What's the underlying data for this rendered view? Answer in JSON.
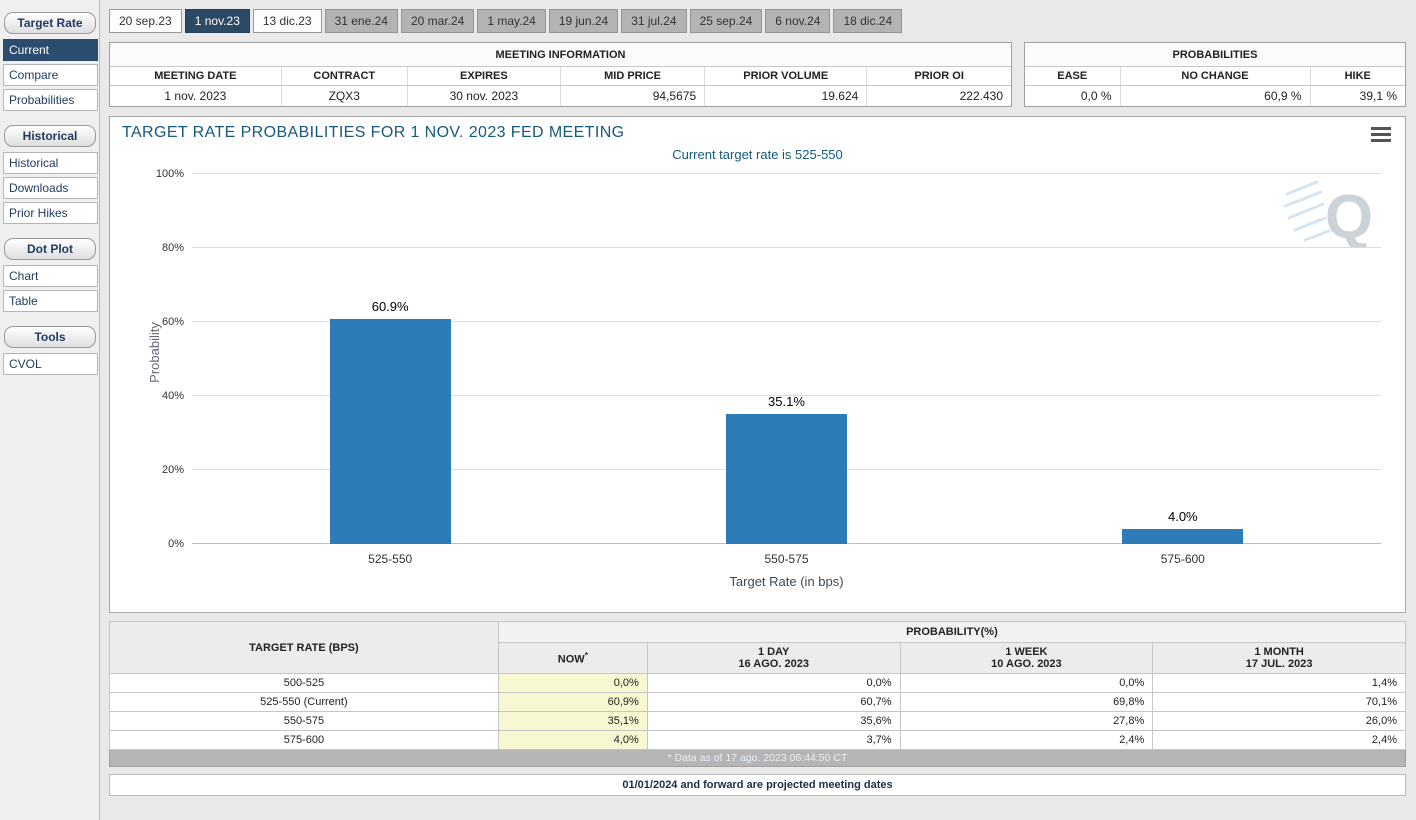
{
  "colors": {
    "bar": "#2e7cb7",
    "selected_navy": "#2b4c6f",
    "now_column_yellow": "#f7f7d2",
    "title_teal": "#15597e"
  },
  "sidebar": {
    "sections": [
      {
        "header": "Target Rate",
        "items": [
          {
            "label": "Current",
            "selected": true
          },
          {
            "label": "Compare",
            "selected": false
          },
          {
            "label": "Probabilities",
            "selected": false
          }
        ]
      },
      {
        "header": "Historical",
        "items": [
          {
            "label": "Historical",
            "selected": false
          },
          {
            "label": "Downloads",
            "selected": false
          },
          {
            "label": "Prior Hikes",
            "selected": false
          }
        ]
      },
      {
        "header": "Dot Plot",
        "items": [
          {
            "label": "Chart",
            "selected": false
          },
          {
            "label": "Table",
            "selected": false
          }
        ]
      },
      {
        "header": "Tools",
        "items": [
          {
            "label": "CVOL",
            "selected": false
          }
        ]
      }
    ]
  },
  "tabs": [
    {
      "label": "20 sep.23",
      "state": "normal"
    },
    {
      "label": "1 nov.23",
      "state": "selected"
    },
    {
      "label": "13 dic.23",
      "state": "normal"
    },
    {
      "label": "31 ene.24",
      "state": "projected"
    },
    {
      "label": "20 mar.24",
      "state": "projected"
    },
    {
      "label": "1 may.24",
      "state": "projected"
    },
    {
      "label": "19 jun.24",
      "state": "projected"
    },
    {
      "label": "31 jul.24",
      "state": "projected"
    },
    {
      "label": "25 sep.24",
      "state": "projected"
    },
    {
      "label": "6 nov.24",
      "state": "projected"
    },
    {
      "label": "18 dic.24",
      "state": "projected"
    }
  ],
  "meeting_info": {
    "title": "MEETING INFORMATION",
    "headers": [
      "MEETING DATE",
      "CONTRACT",
      "EXPIRES",
      "MID PRICE",
      "PRIOR VOLUME",
      "PRIOR OI"
    ],
    "values": [
      "1 nov. 2023",
      "ZQX3",
      "30 nov. 2023",
      "94,5675",
      "19.624",
      "222.430"
    ]
  },
  "probabilities_panel": {
    "title": "PROBABILITIES",
    "headers": [
      "EASE",
      "NO CHANGE",
      "HIKE"
    ],
    "values": [
      "0,0 %",
      "60,9 %",
      "39,1 %"
    ]
  },
  "chart": {
    "title": "TARGET RATE PROBABILITIES FOR 1 NOV. 2023 FED MEETING",
    "subtitle": "Current target rate is 525-550",
    "menu_icon": "hamburger-menu",
    "watermark": "quikstrike-q-logo"
  },
  "chart_data": {
    "type": "bar",
    "title": "TARGET RATE PROBABILITIES FOR 1 NOV. 2023 FED MEETING",
    "subtitle": "Current target rate is 525-550",
    "categories": [
      "525-550",
      "550-575",
      "575-600"
    ],
    "values": [
      60.9,
      35.1,
      4.0
    ],
    "bar_labels": [
      "60.9%",
      "35.1%",
      "4.0%"
    ],
    "xlabel": "Target Rate (in bps)",
    "ylabel": "Probability",
    "ylim": [
      0,
      100
    ],
    "yticks": [
      "0%",
      "20%",
      "40%",
      "60%",
      "80%",
      "100%"
    ],
    "grid": true,
    "legend": false,
    "bar_color": "#2e7cb7"
  },
  "prob_table": {
    "rate_header": "TARGET RATE (BPS)",
    "group_header": "PROBABILITY(%)",
    "sub_headers": [
      {
        "title": "NOW",
        "sup": "*",
        "date": ""
      },
      {
        "title": "1 DAY",
        "sup": "",
        "date": "16 AGO. 2023"
      },
      {
        "title": "1 WEEK",
        "sup": "",
        "date": "10 AGO. 2023"
      },
      {
        "title": "1 MONTH",
        "sup": "",
        "date": "17 JUL. 2023"
      }
    ],
    "rows": [
      {
        "rate": "500-525",
        "cells": [
          "0,0%",
          "0,0%",
          "0,0%",
          "1,4%"
        ]
      },
      {
        "rate": "525-550 (Current)",
        "cells": [
          "60,9%",
          "60,7%",
          "69,8%",
          "70,1%"
        ]
      },
      {
        "rate": "550-575",
        "cells": [
          "35,1%",
          "35,6%",
          "27,8%",
          "26,0%"
        ]
      },
      {
        "rate": "575-600",
        "cells": [
          "4,0%",
          "3,7%",
          "2,4%",
          "2,4%"
        ]
      }
    ],
    "footnote": "* Data as of 17 ago. 2023 06:44:50 CT"
  },
  "footer_note": "01/01/2024 and forward are projected meeting dates"
}
